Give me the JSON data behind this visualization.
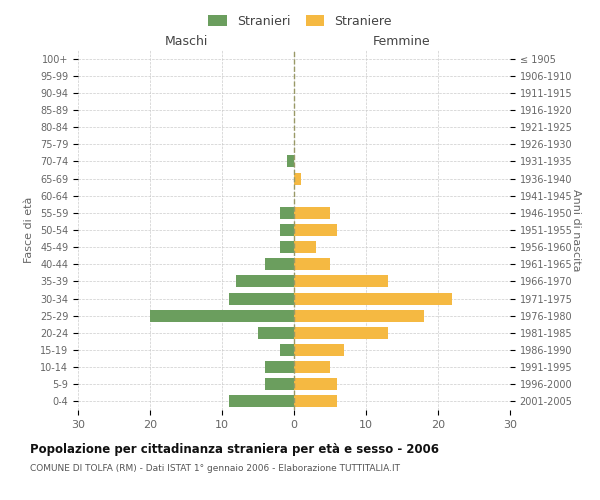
{
  "age_groups": [
    "0-4",
    "5-9",
    "10-14",
    "15-19",
    "20-24",
    "25-29",
    "30-34",
    "35-39",
    "40-44",
    "45-49",
    "50-54",
    "55-59",
    "60-64",
    "65-69",
    "70-74",
    "75-79",
    "80-84",
    "85-89",
    "90-94",
    "95-99",
    "100+"
  ],
  "birth_years": [
    "2001-2005",
    "1996-2000",
    "1991-1995",
    "1986-1990",
    "1981-1985",
    "1976-1980",
    "1971-1975",
    "1966-1970",
    "1961-1965",
    "1956-1960",
    "1951-1955",
    "1946-1950",
    "1941-1945",
    "1936-1940",
    "1931-1935",
    "1926-1930",
    "1921-1925",
    "1916-1920",
    "1911-1915",
    "1906-1910",
    "≤ 1905"
  ],
  "maschi": [
    9,
    4,
    4,
    2,
    5,
    20,
    9,
    8,
    4,
    2,
    2,
    2,
    0,
    0,
    1,
    0,
    0,
    0,
    0,
    0,
    0
  ],
  "femmine": [
    6,
    6,
    5,
    7,
    13,
    18,
    22,
    13,
    5,
    3,
    6,
    5,
    0,
    1,
    0,
    0,
    0,
    0,
    0,
    0,
    0
  ],
  "color_maschi": "#6b9e5e",
  "color_femmine": "#f5b942",
  "xlim": 30,
  "title": "Popolazione per cittadinanza straniera per età e sesso - 2006",
  "subtitle": "COMUNE DI TOLFA (RM) - Dati ISTAT 1° gennaio 2006 - Elaborazione TUTTITALIA.IT",
  "ylabel_left": "Fasce di età",
  "ylabel_right": "Anni di nascita",
  "label_maschi": "Stranieri",
  "label_femmine": "Straniere",
  "col_maschi_header": "Maschi",
  "col_femmine_header": "Femmine",
  "bg_color": "#ffffff",
  "grid_color": "#cccccc"
}
